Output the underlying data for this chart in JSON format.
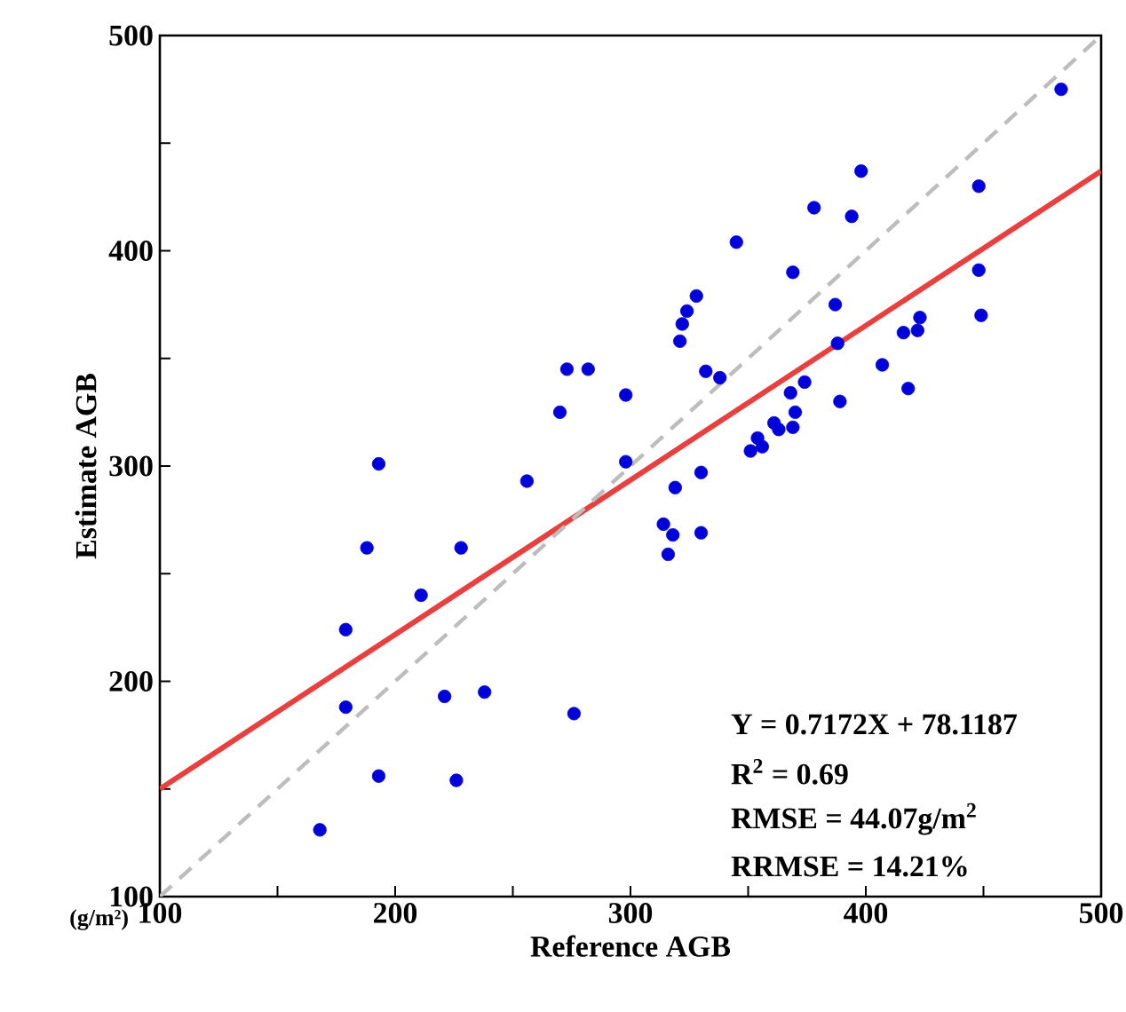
{
  "chart_data": {
    "type": "scatter",
    "xlabel": "Reference AGB",
    "ylabel": "Estimate AGB",
    "xlim": [
      100,
      500
    ],
    "ylim": [
      100,
      500
    ],
    "xticks": [
      100,
      {
        "value": 150,
        "label": null
      },
      200,
      {
        "value": 250,
        "label": null
      },
      300,
      {
        "value": 350,
        "label": null
      },
      400,
      {
        "value": 450,
        "label": null
      },
      500
    ],
    "yticks": [
      100,
      {
        "value": 150,
        "label": null
      },
      200,
      {
        "value": 250,
        "label": null
      },
      300,
      {
        "value": 350,
        "label": null
      },
      400,
      {
        "value": 450,
        "label": null
      },
      500
    ],
    "marker": "circle",
    "series": [
      {
        "color": "#0000d8",
        "x": [
          168,
          179,
          179,
          188,
          193,
          193,
          211,
          221,
          226,
          228,
          238,
          256,
          270,
          273,
          276,
          282,
          298,
          298,
          314,
          316,
          318,
          319,
          321,
          322,
          324,
          328,
          330,
          330,
          332,
          338,
          345,
          351,
          354,
          356,
          361,
          363,
          368,
          369,
          369,
          370,
          374,
          378,
          387,
          388,
          389,
          394,
          398,
          407,
          416,
          418,
          422,
          423,
          448,
          448,
          449,
          483
        ],
        "values": [
          131,
          188,
          224,
          262,
          301,
          156,
          240,
          193,
          154,
          262,
          195,
          293,
          325,
          345,
          185,
          345,
          333,
          302,
          273,
          259,
          268,
          290,
          358,
          366,
          372,
          379,
          269,
          297,
          344,
          341,
          404,
          307,
          313,
          309,
          320,
          317,
          334,
          390,
          318,
          325,
          339,
          420,
          375,
          357,
          330,
          416,
          437,
          347,
          362,
          336,
          363,
          369,
          391,
          430,
          370,
          475
        ]
      },
      {
        "type": "line",
        "marker": "none",
        "color": "#e8403e",
        "line_style": "solid",
        "x": [
          100,
          500
        ],
        "values": [
          150,
          437
        ]
      },
      {
        "type": "line",
        "marker": "none",
        "color": "#bdbdbd",
        "line_style": "dashed",
        "x": [
          100,
          500
        ],
        "values": [
          100,
          500
        ]
      }
    ],
    "annotations": [
      "Y = 0.7172X + 78.1187",
      "R$^{2}$ = 0.69",
      "RMSE = 44.07g/m$^{2}$",
      "RRMSE = 14.21%",
      "(g/m²)"
    ]
  }
}
